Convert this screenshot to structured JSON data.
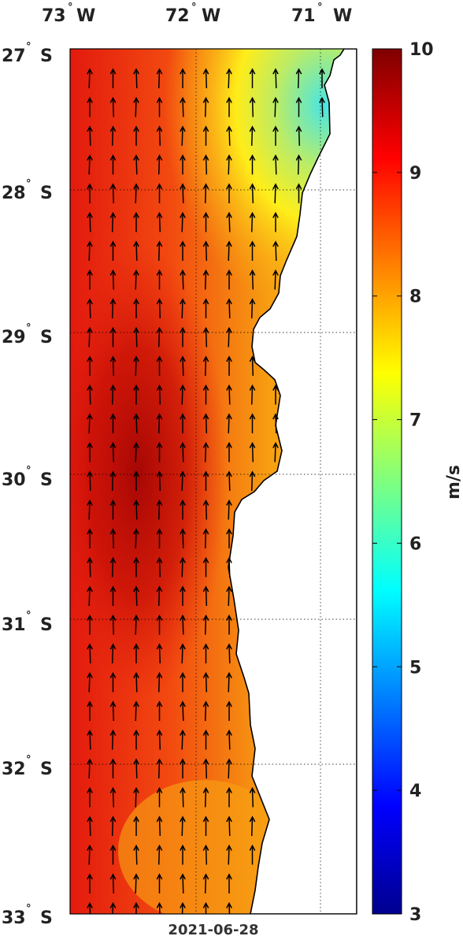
{
  "map": {
    "date": "2021-06-28",
    "colorbar_unit": "m/s",
    "colorbar_range": [
      3,
      10
    ],
    "colorbar_ticks": [
      "3",
      "4",
      "5",
      "6",
      "7",
      "8",
      "9",
      "10"
    ],
    "colormap": "jet",
    "lon_labels": [
      {
        "deg": "73",
        "hemi": "W"
      },
      {
        "deg": "72",
        "hemi": "W"
      },
      {
        "deg": "71",
        "hemi": "W"
      }
    ],
    "lat_labels": [
      {
        "deg": "27",
        "hemi": "S"
      },
      {
        "deg": "28",
        "hemi": "S"
      },
      {
        "deg": "29",
        "hemi": "S"
      },
      {
        "deg": "30",
        "hemi": "S"
      },
      {
        "deg": "31",
        "hemi": "S"
      },
      {
        "deg": "32",
        "hemi": "S"
      },
      {
        "deg": "33",
        "hemi": "S"
      }
    ],
    "land_color": "#ffffff",
    "arrow_direction": "northward",
    "arrow_color": "#000000"
  }
}
